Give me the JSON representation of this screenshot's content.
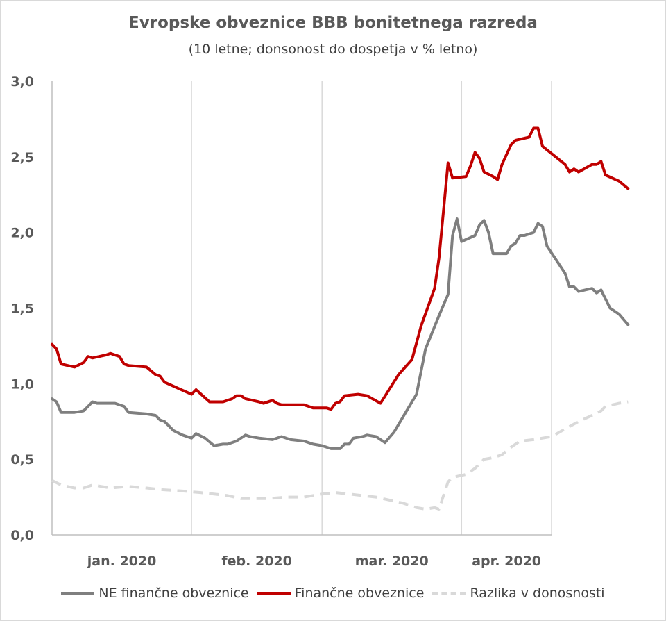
{
  "chart_data": {
    "type": "line",
    "title": "Evropske obveznice BBB bonitetnega razreda",
    "subtitle": "(10 letne; donsonost do dospetja v % letno)",
    "xlabel": "",
    "ylabel": "",
    "ylim": [
      0,
      3
    ],
    "y_ticks": [
      "0,0",
      "0,5",
      "1,0",
      "1,5",
      "2,0",
      "2,5",
      "3,0"
    ],
    "x_tick_labels": [
      "jan. 2020",
      "feb. 2020",
      "mar. 2020",
      "apr. 2020"
    ],
    "grid": "vertical gridlines at month boundaries",
    "legend_position": "bottom",
    "x_start": "2020-01-01",
    "x_end": "2020-04-21",
    "series": [
      {
        "name": "NE finančne obveznice",
        "color": "#7f7f7f",
        "style": "solid",
        "points": [
          [
            "2020-01-01",
            0.9
          ],
          [
            "2020-01-02",
            0.88
          ],
          [
            "2020-01-03",
            0.81
          ],
          [
            "2020-01-06",
            0.81
          ],
          [
            "2020-01-08",
            0.82
          ],
          [
            "2020-01-10",
            0.88
          ],
          [
            "2020-01-11",
            0.87
          ],
          [
            "2020-01-13",
            0.87
          ],
          [
            "2020-01-15",
            0.87
          ],
          [
            "2020-01-17",
            0.85
          ],
          [
            "2020-01-18",
            0.81
          ],
          [
            "2020-01-22",
            0.8
          ],
          [
            "2020-01-24",
            0.79
          ],
          [
            "2020-01-25",
            0.76
          ],
          [
            "2020-01-26",
            0.75
          ],
          [
            "2020-01-28",
            0.69
          ],
          [
            "2020-01-30",
            0.66
          ],
          [
            "2020-02-01",
            0.64
          ],
          [
            "2020-02-02",
            0.67
          ],
          [
            "2020-02-04",
            0.64
          ],
          [
            "2020-02-06",
            0.59
          ],
          [
            "2020-02-08",
            0.6
          ],
          [
            "2020-02-09",
            0.6
          ],
          [
            "2020-02-11",
            0.62
          ],
          [
            "2020-02-13",
            0.66
          ],
          [
            "2020-02-14",
            0.65
          ],
          [
            "2020-02-16",
            0.64
          ],
          [
            "2020-02-19",
            0.63
          ],
          [
            "2020-02-21",
            0.65
          ],
          [
            "2020-02-23",
            0.63
          ],
          [
            "2020-02-26",
            0.62
          ],
          [
            "2020-02-28",
            0.6
          ],
          [
            "2020-03-01",
            0.59
          ],
          [
            "2020-03-03",
            0.57
          ],
          [
            "2020-03-05",
            0.57
          ],
          [
            "2020-03-06",
            0.6
          ],
          [
            "2020-03-07",
            0.6
          ],
          [
            "2020-03-08",
            0.64
          ],
          [
            "2020-03-10",
            0.65
          ],
          [
            "2020-03-11",
            0.66
          ],
          [
            "2020-03-13",
            0.65
          ],
          [
            "2020-03-15",
            0.61
          ],
          [
            "2020-03-17",
            0.68
          ],
          [
            "2020-03-20",
            0.83
          ],
          [
            "2020-03-22",
            0.93
          ],
          [
            "2020-03-24",
            1.23
          ],
          [
            "2020-03-27",
            1.45
          ],
          [
            "2020-03-29",
            1.59
          ],
          [
            "2020-03-30",
            1.98
          ],
          [
            "2020-03-31",
            2.09
          ],
          [
            "2020-04-01",
            1.94
          ],
          [
            "2020-04-04",
            1.98
          ],
          [
            "2020-04-05",
            2.05
          ],
          [
            "2020-04-06",
            2.08
          ],
          [
            "2020-04-07",
            2.0
          ],
          [
            "2020-04-08",
            1.86
          ],
          [
            "2020-04-09",
            1.86
          ],
          [
            "2020-04-11",
            1.86
          ],
          [
            "2020-04-12",
            1.91
          ],
          [
            "2020-04-13",
            1.93
          ],
          [
            "2020-04-14",
            1.98
          ],
          [
            "2020-04-15",
            1.98
          ],
          [
            "2020-04-17",
            2.0
          ],
          [
            "2020-04-18",
            2.06
          ],
          [
            "2020-04-19",
            2.04
          ],
          [
            "2020-04-20",
            1.91
          ],
          [
            "2020-04-24",
            1.73
          ],
          [
            "2020-04-25",
            1.64
          ],
          [
            "2020-04-26",
            1.64
          ],
          [
            "2020-04-27",
            1.61
          ],
          [
            "2020-04-30",
            1.63
          ],
          [
            "2020-05-01",
            1.6
          ],
          [
            "2020-05-02",
            1.62
          ],
          [
            "2020-05-04",
            1.5
          ],
          [
            "2020-05-06",
            1.46
          ],
          [
            "2020-05-08",
            1.39
          ]
        ]
      },
      {
        "name": "Finančne obveznice",
        "color": "#c00000",
        "style": "solid",
        "points": [
          [
            "2020-01-01",
            1.26
          ],
          [
            "2020-01-02",
            1.23
          ],
          [
            "2020-01-03",
            1.13
          ],
          [
            "2020-01-06",
            1.11
          ],
          [
            "2020-01-08",
            1.14
          ],
          [
            "2020-01-09",
            1.18
          ],
          [
            "2020-01-10",
            1.17
          ],
          [
            "2020-01-13",
            1.19
          ],
          [
            "2020-01-14",
            1.2
          ],
          [
            "2020-01-16",
            1.18
          ],
          [
            "2020-01-17",
            1.13
          ],
          [
            "2020-01-18",
            1.12
          ],
          [
            "2020-01-22",
            1.11
          ],
          [
            "2020-01-24",
            1.06
          ],
          [
            "2020-01-25",
            1.05
          ],
          [
            "2020-01-26",
            1.01
          ],
          [
            "2020-01-29",
            0.97
          ],
          [
            "2020-02-01",
            0.93
          ],
          [
            "2020-02-02",
            0.96
          ],
          [
            "2020-02-05",
            0.88
          ],
          [
            "2020-02-08",
            0.88
          ],
          [
            "2020-02-10",
            0.9
          ],
          [
            "2020-02-11",
            0.92
          ],
          [
            "2020-02-12",
            0.92
          ],
          [
            "2020-02-13",
            0.9
          ],
          [
            "2020-02-16",
            0.88
          ],
          [
            "2020-02-17",
            0.87
          ],
          [
            "2020-02-19",
            0.89
          ],
          [
            "2020-02-20",
            0.87
          ],
          [
            "2020-02-21",
            0.86
          ],
          [
            "2020-02-24",
            0.86
          ],
          [
            "2020-02-26",
            0.86
          ],
          [
            "2020-02-27",
            0.85
          ],
          [
            "2020-02-28",
            0.84
          ],
          [
            "2020-03-02",
            0.84
          ],
          [
            "2020-03-03",
            0.83
          ],
          [
            "2020-03-04",
            0.87
          ],
          [
            "2020-03-05",
            0.88
          ],
          [
            "2020-03-06",
            0.92
          ],
          [
            "2020-03-09",
            0.93
          ],
          [
            "2020-03-11",
            0.92
          ],
          [
            "2020-03-14",
            0.87
          ],
          [
            "2020-03-18",
            1.06
          ],
          [
            "2020-03-21",
            1.16
          ],
          [
            "2020-03-23",
            1.38
          ],
          [
            "2020-03-26",
            1.63
          ],
          [
            "2020-03-27",
            1.83
          ],
          [
            "2020-03-29",
            2.46
          ],
          [
            "2020-03-30",
            2.36
          ],
          [
            "2020-04-02",
            2.37
          ],
          [
            "2020-04-03",
            2.44
          ],
          [
            "2020-04-04",
            2.53
          ],
          [
            "2020-04-05",
            2.49
          ],
          [
            "2020-04-06",
            2.4
          ],
          [
            "2020-04-08",
            2.37
          ],
          [
            "2020-04-09",
            2.35
          ],
          [
            "2020-04-10",
            2.45
          ],
          [
            "2020-04-12",
            2.58
          ],
          [
            "2020-04-13",
            2.61
          ],
          [
            "2020-04-16",
            2.63
          ],
          [
            "2020-04-17",
            2.69
          ],
          [
            "2020-04-18",
            2.69
          ],
          [
            "2020-04-19",
            2.57
          ],
          [
            "2020-04-24",
            2.45
          ],
          [
            "2020-04-25",
            2.4
          ],
          [
            "2020-04-26",
            2.42
          ],
          [
            "2020-04-27",
            2.4
          ],
          [
            "2020-04-30",
            2.45
          ],
          [
            "2020-05-01",
            2.45
          ],
          [
            "2020-05-02",
            2.47
          ],
          [
            "2020-05-03",
            2.38
          ],
          [
            "2020-05-06",
            2.34
          ],
          [
            "2020-05-08",
            2.29
          ]
        ]
      },
      {
        "name": "Razlika v donosnosti",
        "color": "#d9d9d9",
        "style": "dashed",
        "points": [
          [
            "2020-01-01",
            0.36
          ],
          [
            "2020-01-03",
            0.33
          ],
          [
            "2020-01-06",
            0.31
          ],
          [
            "2020-01-08",
            0.31
          ],
          [
            "2020-01-10",
            0.33
          ],
          [
            "2020-01-12",
            0.32
          ],
          [
            "2020-01-14",
            0.31
          ],
          [
            "2020-01-18",
            0.32
          ],
          [
            "2020-01-22",
            0.31
          ],
          [
            "2020-01-25",
            0.3
          ],
          [
            "2020-01-30",
            0.29
          ],
          [
            "2020-02-03",
            0.28
          ],
          [
            "2020-02-06",
            0.27
          ],
          [
            "2020-02-09",
            0.26
          ],
          [
            "2020-02-12",
            0.24
          ],
          [
            "2020-02-15",
            0.24
          ],
          [
            "2020-02-18",
            0.24
          ],
          [
            "2020-02-22",
            0.25
          ],
          [
            "2020-02-26",
            0.25
          ],
          [
            "2020-03-01",
            0.27
          ],
          [
            "2020-03-04",
            0.28
          ],
          [
            "2020-03-07",
            0.27
          ],
          [
            "2020-03-10",
            0.26
          ],
          [
            "2020-03-13",
            0.25
          ],
          [
            "2020-03-16",
            0.23
          ],
          [
            "2020-03-19",
            0.21
          ],
          [
            "2020-03-22",
            0.18
          ],
          [
            "2020-03-24",
            0.17
          ],
          [
            "2020-03-26",
            0.18
          ],
          [
            "2020-03-27",
            0.17
          ],
          [
            "2020-03-28",
            0.26
          ],
          [
            "2020-03-29",
            0.35
          ],
          [
            "2020-03-30",
            0.38
          ],
          [
            "2020-04-02",
            0.4
          ],
          [
            "2020-04-04",
            0.44
          ],
          [
            "2020-04-06",
            0.5
          ],
          [
            "2020-04-08",
            0.51
          ],
          [
            "2020-04-10",
            0.53
          ],
          [
            "2020-04-12",
            0.58
          ],
          [
            "2020-04-14",
            0.62
          ],
          [
            "2020-04-17",
            0.63
          ],
          [
            "2020-04-21",
            0.65
          ],
          [
            "2020-04-24",
            0.7
          ],
          [
            "2020-04-27",
            0.75
          ],
          [
            "2020-04-30",
            0.79
          ],
          [
            "2020-05-02",
            0.82
          ],
          [
            "2020-05-03",
            0.85
          ],
          [
            "2020-05-06",
            0.87
          ],
          [
            "2020-05-08",
            0.88
          ]
        ]
      }
    ]
  }
}
